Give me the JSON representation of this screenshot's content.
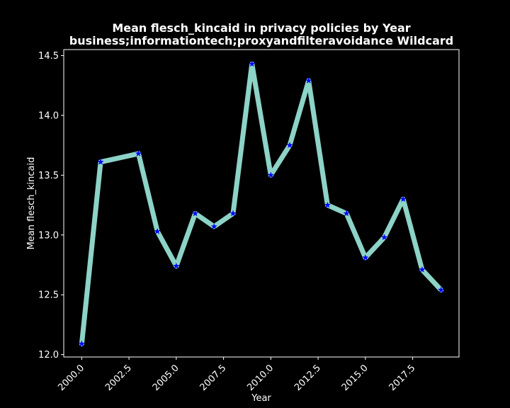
{
  "chart_data": {
    "type": "line",
    "title_line1": "Mean flesch_kincaid in privacy policies by Year",
    "title_line2": "business;informationtech;proxyandfilteravoidance Wildcard",
    "xlabel": "Year",
    "ylabel": "Mean flesch_kincaid",
    "xlim": [
      1999.05,
      2019.95
    ],
    "ylim": [
      11.98,
      14.55
    ],
    "xticks": [
      2000.0,
      2002.5,
      2005.0,
      2007.5,
      2010.0,
      2012.5,
      2015.0,
      2017.5
    ],
    "xtick_labels": [
      "2000.0",
      "2002.5",
      "2005.0",
      "2007.5",
      "2010.0",
      "2012.5",
      "2015.0",
      "2017.5"
    ],
    "yticks": [
      12.0,
      12.5,
      13.0,
      13.5,
      14.0,
      14.5
    ],
    "ytick_labels": [
      "12.0",
      "12.5",
      "13.0",
      "13.5",
      "14.0",
      "14.5"
    ],
    "grid": false,
    "background_color": "#000000",
    "line_color": "#8dd3c7",
    "marker_color": "#0000ff",
    "marker": "star",
    "series": [
      {
        "x": [
          2000,
          2001,
          2003,
          2004,
          2005,
          2006,
          2007,
          2008,
          2009,
          2010,
          2011,
          2012,
          2013,
          2014,
          2015,
          2016,
          2017,
          2018,
          2019
        ],
        "values": [
          12.09,
          13.61,
          13.68,
          13.03,
          12.74,
          13.18,
          13.07,
          13.18,
          14.43,
          13.5,
          13.75,
          14.29,
          13.25,
          13.18,
          12.81,
          12.98,
          13.3,
          12.71,
          12.54
        ]
      }
    ]
  }
}
